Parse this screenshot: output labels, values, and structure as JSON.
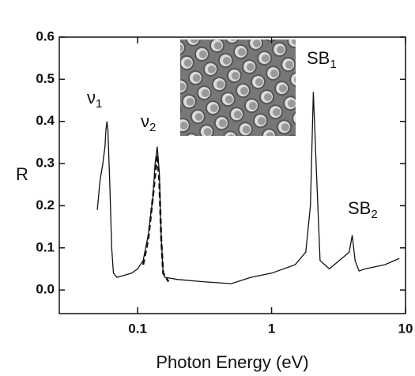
{
  "chart_data": {
    "type": "line",
    "x_label": "Photon Energy (eV)",
    "y_label": "R",
    "xscale": "log",
    "xlim": [
      0.026,
      10
    ],
    "ylim": [
      -0.056,
      0.6
    ],
    "xticks": [
      0.1,
      1,
      10
    ],
    "yticks": [
      {
        "value": 0,
        "label": "0.0"
      },
      0.1,
      0.2,
      0.3,
      0.4,
      0.5,
      0.6
    ],
    "series": [
      {
        "color": "#111111",
        "dash": false,
        "x": [
          0.05,
          0.051,
          0.052,
          0.053,
          0.055,
          0.057,
          0.058,
          0.059,
          0.06,
          0.062,
          0.064,
          0.066,
          0.07,
          0.08,
          0.09,
          0.1,
          0.11,
          0.12,
          0.13,
          0.135,
          0.14,
          0.145,
          0.15,
          0.155,
          0.16,
          0.2,
          0.3,
          0.5,
          0.7,
          1,
          1.5,
          1.8,
          1.95,
          2.05,
          2.15,
          2.3,
          2.7,
          3.2,
          3.5,
          3.8,
          4.0,
          4.2,
          4.5,
          5,
          7,
          9
        ],
        "values": [
          0.19,
          0.22,
          0.25,
          0.27,
          0.3,
          0.34,
          0.38,
          0.4,
          0.38,
          0.25,
          0.1,
          0.04,
          0.03,
          0.035,
          0.04,
          0.05,
          0.07,
          0.13,
          0.22,
          0.3,
          0.34,
          0.28,
          0.12,
          0.04,
          0.03,
          0.025,
          0.02,
          0.015,
          0.03,
          0.04,
          0.06,
          0.09,
          0.2,
          0.47,
          0.3,
          0.07,
          0.05,
          0.07,
          0.08,
          0.09,
          0.13,
          0.07,
          0.045,
          0.05,
          0.06,
          0.075
        ]
      },
      {
        "color": "#111111",
        "dash": true,
        "x": [
          0.11,
          0.12,
          0.13,
          0.14,
          0.145,
          0.15,
          0.155,
          0.17
        ],
        "values": [
          0.06,
          0.12,
          0.22,
          0.32,
          0.26,
          0.12,
          0.04,
          0.02
        ]
      }
    ],
    "annotations": [
      {
        "text": "ν",
        "sub": "1"
      },
      {
        "text": "ν",
        "sub": "2"
      },
      {
        "text": "SB",
        "sub": "1"
      },
      {
        "text": "SB",
        "sub": "2"
      }
    ]
  }
}
